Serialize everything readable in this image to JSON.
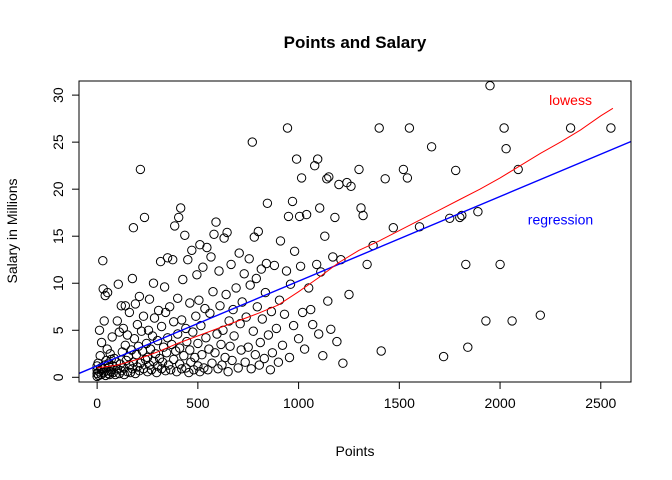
{
  "chart_data": {
    "type": "scatter",
    "title": "Points and Salary",
    "xlabel": "Points",
    "ylabel": "Salary in Millions",
    "xlim": [
      -90,
      2650
    ],
    "ylim": [
      -0.5,
      31.5
    ],
    "xticks": [
      0,
      500,
      1000,
      1500,
      2000,
      2500
    ],
    "yticks": [
      0,
      5,
      10,
      15,
      20,
      25,
      30
    ],
    "xtick_labels": [
      "0",
      "500",
      "1000",
      "1500",
      "2000",
      "2500"
    ],
    "ytick_labels": [
      "0",
      "5",
      "10",
      "15",
      "20",
      "25",
      "30"
    ],
    "grid": false,
    "marker": "open-circle",
    "points": [
      [
        0,
        0.1
      ],
      [
        0,
        0.4
      ],
      [
        0,
        0.8
      ],
      [
        0,
        1.2
      ],
      [
        5,
        1.5
      ],
      [
        8,
        0.2
      ],
      [
        10,
        0.6
      ],
      [
        12,
        5.0
      ],
      [
        15,
        2.3
      ],
      [
        18,
        1.0
      ],
      [
        20,
        0.3
      ],
      [
        22,
        3.7
      ],
      [
        25,
        0.9
      ],
      [
        28,
        12.4
      ],
      [
        30,
        9.4
      ],
      [
        32,
        0.5
      ],
      [
        35,
        6.0
      ],
      [
        38,
        1.3
      ],
      [
        40,
        8.7
      ],
      [
        42,
        0.2
      ],
      [
        45,
        1.8
      ],
      [
        48,
        0.7
      ],
      [
        50,
        3.0
      ],
      [
        52,
        9.0
      ],
      [
        55,
        0.4
      ],
      [
        58,
        1.5
      ],
      [
        60,
        1.1
      ],
      [
        62,
        0.3
      ],
      [
        65,
        2.5
      ],
      [
        68,
        0.6
      ],
      [
        70,
        1.9
      ],
      [
        72,
        0.8
      ],
      [
        75,
        4.3
      ],
      [
        78,
        1.2
      ],
      [
        80,
        0.5
      ],
      [
        85,
        2.0
      ],
      [
        90,
        0.3
      ],
      [
        95,
        1.6
      ],
      [
        100,
        6.0
      ],
      [
        100,
        0.9
      ],
      [
        105,
        9.9
      ],
      [
        110,
        0.4
      ],
      [
        110,
        4.8
      ],
      [
        115,
        1.4
      ],
      [
        120,
        7.6
      ],
      [
        120,
        0.7
      ],
      [
        125,
        2.7
      ],
      [
        130,
        5.2
      ],
      [
        130,
        1.0
      ],
      [
        135,
        0.3
      ],
      [
        140,
        7.6
      ],
      [
        140,
        3.4
      ],
      [
        145,
        1.8
      ],
      [
        150,
        0.6
      ],
      [
        150,
        4.5
      ],
      [
        155,
        2.2
      ],
      [
        160,
        1.3
      ],
      [
        160,
        6.9
      ],
      [
        165,
        0.5
      ],
      [
        170,
        2.9
      ],
      [
        175,
        10.5
      ],
      [
        175,
        0.9
      ],
      [
        180,
        15.9
      ],
      [
        180,
        1.6
      ],
      [
        185,
        4.1
      ],
      [
        190,
        0.4
      ],
      [
        190,
        7.8
      ],
      [
        195,
        2.4
      ],
      [
        200,
        1.1
      ],
      [
        200,
        5.6
      ],
      [
        205,
        3.3
      ],
      [
        210,
        0.7
      ],
      [
        210,
        8.6
      ],
      [
        215,
        22.1
      ],
      [
        215,
        1.5
      ],
      [
        220,
        4.9
      ],
      [
        225,
        2.8
      ],
      [
        230,
        0.9
      ],
      [
        230,
        6.5
      ],
      [
        235,
        17.0
      ],
      [
        240,
        1.9
      ],
      [
        245,
        3.6
      ],
      [
        250,
        0.6
      ],
      [
        250,
        2.1
      ],
      [
        255,
        5.0
      ],
      [
        260,
        1.3
      ],
      [
        260,
        8.3
      ],
      [
        265,
        3.0
      ],
      [
        270,
        0.8
      ],
      [
        275,
        4.4
      ],
      [
        280,
        10.0
      ],
      [
        280,
        1.7
      ],
      [
        285,
        6.3
      ],
      [
        290,
        2.5
      ],
      [
        295,
        0.5
      ],
      [
        300,
        3.9
      ],
      [
        300,
        1.2
      ],
      [
        305,
        7.1
      ],
      [
        310,
        2.0
      ],
      [
        315,
        12.3
      ],
      [
        320,
        0.9
      ],
      [
        320,
        5.4
      ],
      [
        325,
        1.6
      ],
      [
        330,
        3.2
      ],
      [
        335,
        9.6
      ],
      [
        340,
        0.7
      ],
      [
        340,
        6.9
      ],
      [
        345,
        2.6
      ],
      [
        350,
        12.7
      ],
      [
        350,
        4.2
      ],
      [
        355,
        1.3
      ],
      [
        360,
        7.5
      ],
      [
        365,
        0.8
      ],
      [
        370,
        3.5
      ],
      [
        375,
        12.5
      ],
      [
        380,
        1.9
      ],
      [
        380,
        5.9
      ],
      [
        385,
        16.1
      ],
      [
        390,
        2.8
      ],
      [
        395,
        0.6
      ],
      [
        400,
        4.6
      ],
      [
        400,
        8.4
      ],
      [
        405,
        17.0
      ],
      [
        410,
        1.4
      ],
      [
        410,
        3.1
      ],
      [
        415,
        18.0
      ],
      [
        420,
        0.9
      ],
      [
        420,
        6.1
      ],
      [
        425,
        10.4
      ],
      [
        430,
        2.3
      ],
      [
        435,
        15.1
      ],
      [
        440,
        1.0
      ],
      [
        440,
        5.2
      ],
      [
        445,
        3.8
      ],
      [
        450,
        12.5
      ],
      [
        455,
        0.5
      ],
      [
        460,
        2.9
      ],
      [
        460,
        7.9
      ],
      [
        465,
        1.6
      ],
      [
        470,
        13.5
      ],
      [
        475,
        4.8
      ],
      [
        480,
        0.8
      ],
      [
        485,
        2.1
      ],
      [
        490,
        6.5
      ],
      [
        495,
        10.9
      ],
      [
        500,
        1.2
      ],
      [
        500,
        3.6
      ],
      [
        505,
        8.2
      ],
      [
        510,
        14.1
      ],
      [
        510,
        0.6
      ],
      [
        515,
        5.5
      ],
      [
        520,
        2.4
      ],
      [
        525,
        11.7
      ],
      [
        530,
        1.0
      ],
      [
        535,
        7.3
      ],
      [
        540,
        4.2
      ],
      [
        545,
        13.8
      ],
      [
        550,
        0.8
      ],
      [
        555,
        3.0
      ],
      [
        560,
        6.8
      ],
      [
        565,
        12.8
      ],
      [
        570,
        1.5
      ],
      [
        575,
        9.1
      ],
      [
        580,
        15.2
      ],
      [
        585,
        2.6
      ],
      [
        590,
        16.5
      ],
      [
        595,
        4.6
      ],
      [
        600,
        0.9
      ],
      [
        605,
        11.3
      ],
      [
        610,
        7.6
      ],
      [
        615,
        3.5
      ],
      [
        620,
        1.3
      ],
      [
        625,
        5.0
      ],
      [
        630,
        14.8
      ],
      [
        635,
        2.1
      ],
      [
        640,
        8.8
      ],
      [
        645,
        15.4
      ],
      [
        650,
        0.6
      ],
      [
        655,
        6.0
      ],
      [
        660,
        3.3
      ],
      [
        665,
        12.0
      ],
      [
        670,
        1.8
      ],
      [
        675,
        7.2
      ],
      [
        680,
        4.4
      ],
      [
        690,
        9.5
      ],
      [
        700,
        1.0
      ],
      [
        705,
        13.2
      ],
      [
        710,
        5.7
      ],
      [
        715,
        2.9
      ],
      [
        720,
        8.0
      ],
      [
        730,
        11.0
      ],
      [
        735,
        1.6
      ],
      [
        740,
        6.4
      ],
      [
        750,
        3.2
      ],
      [
        755,
        12.6
      ],
      [
        760,
        9.8
      ],
      [
        765,
        0.9
      ],
      [
        770,
        25.0
      ],
      [
        775,
        4.9
      ],
      [
        780,
        14.9
      ],
      [
        785,
        2.4
      ],
      [
        790,
        10.5
      ],
      [
        795,
        7.5
      ],
      [
        800,
        15.5
      ],
      [
        805,
        1.3
      ],
      [
        810,
        3.7
      ],
      [
        815,
        11.5
      ],
      [
        820,
        6.2
      ],
      [
        830,
        2.0
      ],
      [
        835,
        9.0
      ],
      [
        840,
        12.1
      ],
      [
        845,
        18.5
      ],
      [
        850,
        4.5
      ],
      [
        860,
        0.8
      ],
      [
        865,
        7.0
      ],
      [
        870,
        2.6
      ],
      [
        880,
        11.9
      ],
      [
        890,
        5.2
      ],
      [
        900,
        1.6
      ],
      [
        905,
        8.2
      ],
      [
        910,
        14.5
      ],
      [
        920,
        3.4
      ],
      [
        930,
        6.7
      ],
      [
        940,
        11.3
      ],
      [
        945,
        26.5
      ],
      [
        950,
        17.1
      ],
      [
        955,
        2.1
      ],
      [
        960,
        9.9
      ],
      [
        970,
        18.7
      ],
      [
        975,
        5.5
      ],
      [
        980,
        13.4
      ],
      [
        990,
        23.2
      ],
      [
        1000,
        4.1
      ],
      [
        1005,
        17.1
      ],
      [
        1010,
        11.8
      ],
      [
        1015,
        21.2
      ],
      [
        1020,
        6.9
      ],
      [
        1030,
        3.0
      ],
      [
        1040,
        17.3
      ],
      [
        1050,
        9.5
      ],
      [
        1060,
        7.2
      ],
      [
        1070,
        5.6
      ],
      [
        1080,
        22.5
      ],
      [
        1090,
        12.0
      ],
      [
        1095,
        23.2
      ],
      [
        1100,
        4.6
      ],
      [
        1105,
        18.0
      ],
      [
        1110,
        11.2
      ],
      [
        1120,
        2.3
      ],
      [
        1130,
        15.0
      ],
      [
        1140,
        21.1
      ],
      [
        1145,
        8.1
      ],
      [
        1150,
        21.3
      ],
      [
        1160,
        5.1
      ],
      [
        1170,
        12.8
      ],
      [
        1180,
        17.0
      ],
      [
        1190,
        3.8
      ],
      [
        1200,
        20.5
      ],
      [
        1210,
        12.5
      ],
      [
        1220,
        1.5
      ],
      [
        1240,
        20.7
      ],
      [
        1250,
        8.8
      ],
      [
        1260,
        20.3
      ],
      [
        1300,
        22.1
      ],
      [
        1310,
        18.0
      ],
      [
        1320,
        17.2
      ],
      [
        1340,
        12.0
      ],
      [
        1370,
        14.0
      ],
      [
        1400,
        26.5
      ],
      [
        1410,
        2.8
      ],
      [
        1430,
        21.1
      ],
      [
        1470,
        15.9
      ],
      [
        1520,
        22.1
      ],
      [
        1540,
        21.2
      ],
      [
        1550,
        26.5
      ],
      [
        1600,
        16.0
      ],
      [
        1660,
        24.5
      ],
      [
        1720,
        2.2
      ],
      [
        1750,
        16.9
      ],
      [
        1780,
        22.0
      ],
      [
        1800,
        17.0
      ],
      [
        1810,
        17.2
      ],
      [
        1830,
        12.0
      ],
      [
        1840,
        3.2
      ],
      [
        1890,
        17.6
      ],
      [
        1930,
        6.0
      ],
      [
        1950,
        31.0
      ],
      [
        2000,
        12.0
      ],
      [
        2020,
        26.5
      ],
      [
        2030,
        24.3
      ],
      [
        2060,
        6.0
      ],
      [
        2090,
        22.1
      ],
      [
        2200,
        6.6
      ],
      [
        2350,
        26.5
      ],
      [
        2550,
        26.5
      ]
    ],
    "lines": [
      {
        "name": "regression",
        "color": "#0000FF",
        "type": "straight",
        "intercept": 1.22,
        "slope": 0.009
      },
      {
        "name": "lowess",
        "color": "#FF0000",
        "type": "curve",
        "x": [
          0,
          100,
          200,
          300,
          400,
          500,
          600,
          700,
          800,
          900,
          1000,
          1100,
          1200,
          1300,
          1400,
          1500,
          1600,
          1700,
          1800,
          1900,
          2000,
          2100,
          2200,
          2300,
          2400,
          2500,
          2560
        ],
        "y": [
          1.0,
          1.3,
          1.9,
          2.7,
          3.6,
          4.4,
          5.2,
          6.0,
          6.8,
          7.7,
          9.1,
          10.6,
          12.2,
          13.5,
          14.5,
          15.6,
          16.7,
          17.8,
          18.9,
          20.0,
          21.2,
          22.5,
          23.8,
          25.0,
          26.3,
          27.8,
          28.6
        ]
      }
    ],
    "annotations": [
      {
        "text": "lowess",
        "color": "#FF0000",
        "x": 2350,
        "y": 29.5
      },
      {
        "text": "regression",
        "color": "#0000FF",
        "x": 2300,
        "y": 16.8
      }
    ]
  }
}
